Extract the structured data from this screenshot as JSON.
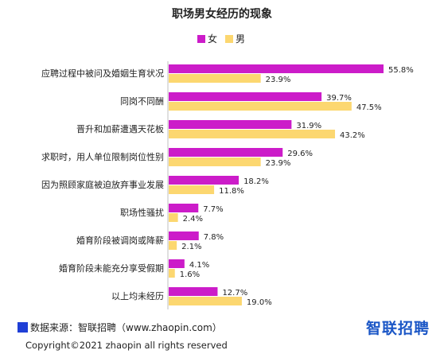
{
  "chart_data": {
    "type": "bar",
    "orientation": "horizontal",
    "title": "职场男女经历的现象",
    "legend_position": "top",
    "categories": [
      "应聘过程中被问及婚姻生育状况",
      "同岗不同酬",
      "晋升和加薪遭遇天花板",
      "求职时，用人单位限制岗位性别",
      "因为照顾家庭被迫放弃事业发展",
      "职场性骚扰",
      "婚育阶段被调岗或降薪",
      "婚育阶段未能充分享受假期",
      "以上均未经历"
    ],
    "series": [
      {
        "name": "女",
        "color": "#cc1cc9",
        "values": [
          55.8,
          39.7,
          31.9,
          29.6,
          18.2,
          7.7,
          7.8,
          4.1,
          12.7
        ],
        "labels": [
          "55.8%",
          "39.7%",
          "31.9%",
          "29.6%",
          "18.2%",
          "7.7%",
          "7.8%",
          "4.1%",
          "12.7%"
        ]
      },
      {
        "name": "男",
        "color": "#fcd770",
        "values": [
          23.9,
          47.5,
          43.2,
          23.9,
          11.8,
          2.4,
          2.1,
          1.6,
          19.0
        ],
        "labels": [
          "23.9%",
          "47.5%",
          "43.2%",
          "23.9%",
          "11.8%",
          "2.4%",
          "2.1%",
          "1.6%",
          "19.0%"
        ]
      }
    ],
    "xlim": [
      0,
      60
    ],
    "grid": false
  },
  "footer": {
    "source": "数据来源：智联招聘（www.zhaopin.com）",
    "logo": "智联招聘",
    "copyright": "Copyright©2021 zhaopin all rights reserved"
  }
}
